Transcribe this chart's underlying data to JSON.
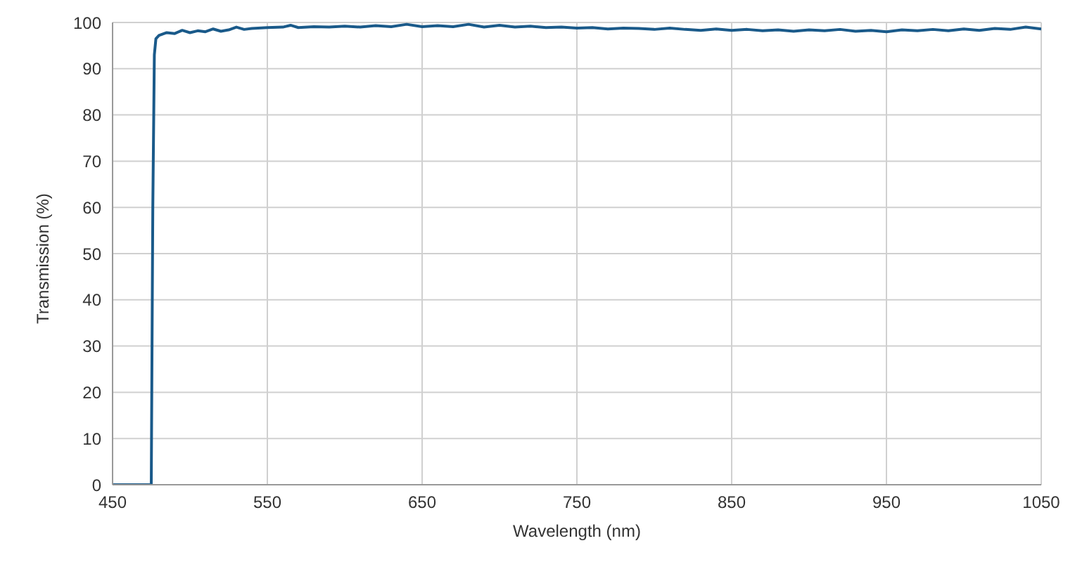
{
  "chart_data": {
    "type": "line",
    "xlabel": "Wavelength (nm)",
    "ylabel": "Transmission (%)",
    "x": [
      450,
      475,
      476,
      477,
      478,
      480,
      485,
      490,
      495,
      500,
      505,
      510,
      515,
      520,
      525,
      530,
      535,
      540,
      550,
      560,
      565,
      570,
      580,
      590,
      600,
      610,
      620,
      630,
      640,
      650,
      660,
      670,
      680,
      690,
      700,
      710,
      720,
      730,
      740,
      750,
      760,
      770,
      780,
      790,
      800,
      810,
      820,
      830,
      840,
      850,
      860,
      870,
      880,
      890,
      900,
      910,
      920,
      930,
      940,
      950,
      960,
      970,
      980,
      990,
      1000,
      1010,
      1020,
      1030,
      1040,
      1050
    ],
    "series": [
      {
        "color": "#1a5a8a",
        "values": [
          0,
          0,
          60,
          93,
          96.5,
          97.2,
          97.8,
          97.6,
          98.3,
          97.8,
          98.2,
          98,
          98.6,
          98.1,
          98.4,
          99,
          98.5,
          98.7,
          98.9,
          99,
          99.4,
          98.9,
          99.1,
          99,
          99.2,
          99,
          99.3,
          99.1,
          99.6,
          99.1,
          99.3,
          99.1,
          99.6,
          99,
          99.4,
          99,
          99.2,
          98.9,
          99,
          98.8,
          98.9,
          98.6,
          98.8,
          98.7,
          98.5,
          98.8,
          98.5,
          98.3,
          98.6,
          98.3,
          98.5,
          98.2,
          98.4,
          98.1,
          98.4,
          98.2,
          98.5,
          98.1,
          98.3,
          98,
          98.4,
          98.2,
          98.5,
          98.2,
          98.6,
          98.3,
          98.7,
          98.5,
          99,
          98.6
        ]
      }
    ],
    "xlim": [
      450,
      1050
    ],
    "xticks": [
      450,
      550,
      650,
      750,
      850,
      950,
      1050
    ],
    "ylim": [
      0,
      100
    ],
    "yticks": [
      0,
      10,
      20,
      30,
      40,
      50,
      60,
      70,
      80,
      90,
      100
    ],
    "grid": true,
    "legend": false,
    "marker": "none",
    "line_style": "solid"
  }
}
